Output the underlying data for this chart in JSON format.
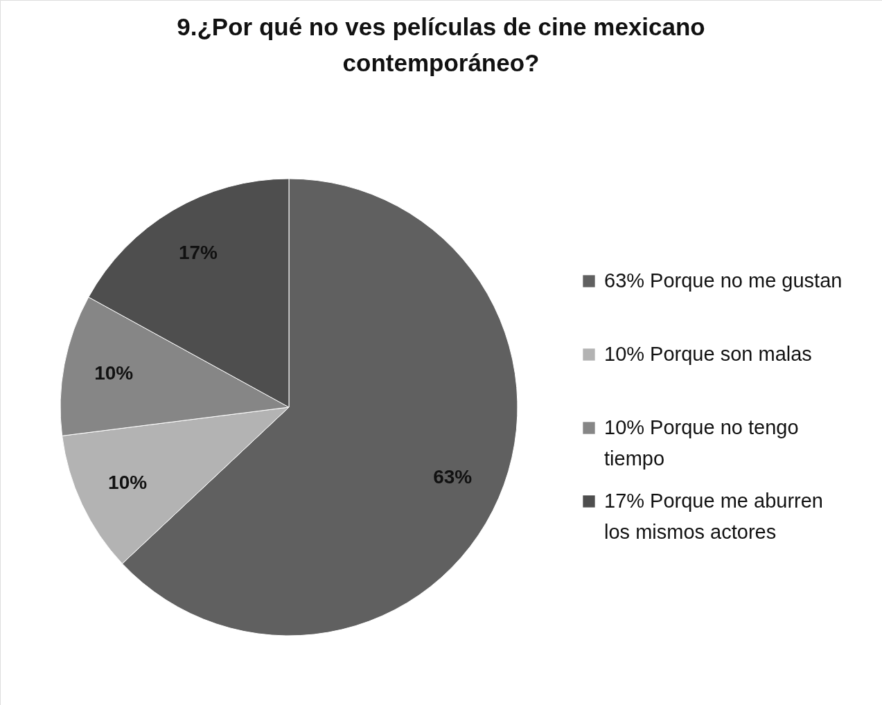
{
  "chart_data": {
    "type": "pie",
    "title": "9.¿Por qué no ves películas de cine mexicano contemporáneo?",
    "categories": [
      "63% Porque no me gustan",
      "10% Porque son malas",
      "10% Porque no tengo tiempo",
      "17% Porque me aburren los mismos actores"
    ],
    "values": [
      63,
      10,
      10,
      17
    ],
    "colors": [
      "#606060",
      "#b3b3b3",
      "#868686",
      "#4e4e4e"
    ],
    "value_labels": [
      "63%",
      "10%",
      "10%",
      "17%"
    ],
    "legend": "right"
  }
}
